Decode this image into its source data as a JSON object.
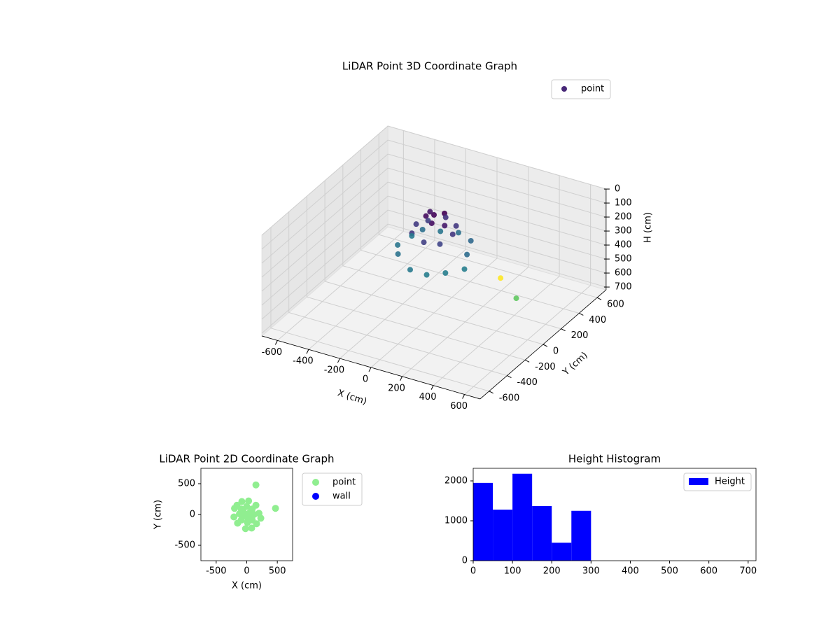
{
  "chart_data": [
    {
      "type": "scatter3d",
      "title": "LiDAR Point 3D Coordinate Graph",
      "xlabel": "X (cm)",
      "ylabel": "Y (cm)",
      "zlabel": "H (cm)",
      "xlim": [
        -700,
        700
      ],
      "ylim": [
        -700,
        700
      ],
      "zlim": [
        720,
        0
      ],
      "xticks": [
        -600,
        -400,
        -200,
        0,
        200,
        400,
        600
      ],
      "yticks": [
        -600,
        -400,
        -200,
        0,
        200,
        400,
        600
      ],
      "zticks": [
        0,
        100,
        200,
        300,
        400,
        500,
        600,
        700
      ],
      "grid": true,
      "legend": "upper right",
      "colormap": [
        "#440154",
        "#482878",
        "#3e4989",
        "#31688e",
        "#26828e",
        "#1f9e89",
        "#35b779",
        "#6ece58",
        "#b5de2b",
        "#fde725"
      ],
      "series": [
        {
          "name": "point",
          "color": "#482878",
          "x": [
            0,
            50,
            -40,
            20,
            -60,
            80,
            120,
            0,
            -120,
            10,
            90,
            -90,
            90,
            -90,
            200,
            -210,
            30,
            -20,
            150,
            -150,
            160,
            -160,
            230,
            -200,
            80,
            -80,
            150,
            470
          ],
          "y": [
            0,
            30,
            -20,
            -60,
            60,
            -20,
            0,
            130,
            10,
            -130,
            90,
            -90,
            -90,
            90,
            20,
            -40,
            220,
            -230,
            150,
            -140,
            -150,
            150,
            -60,
            100,
            -220,
            210,
            480,
            100
          ],
          "z": [
            20,
            10,
            30,
            40,
            50,
            60,
            120,
            110,
            130,
            140,
            120,
            130,
            150,
            140,
            250,
            280,
            260,
            290,
            240,
            270,
            300,
            260,
            300,
            290,
            300,
            280,
            690,
            520
          ]
        }
      ]
    },
    {
      "type": "scatter",
      "title": "LiDAR Point 2D Coordinate Graph",
      "xlabel": "X (cm)",
      "ylabel": "Y (cm)",
      "xlim": [
        -750,
        750
      ],
      "ylim": [
        -750,
        750
      ],
      "xticks": [
        -500,
        0,
        500
      ],
      "yticks": [
        -500,
        0,
        500
      ],
      "legend": "outside right",
      "series": [
        {
          "name": "point",
          "color": "#90ee90",
          "x": [
            0,
            50,
            -40,
            20,
            -60,
            80,
            120,
            0,
            -120,
            10,
            90,
            -90,
            90,
            -90,
            200,
            -210,
            30,
            -20,
            150,
            -150,
            160,
            -160,
            230,
            -200,
            80,
            -80,
            150,
            470
          ],
          "y": [
            0,
            30,
            -20,
            -60,
            60,
            -20,
            0,
            130,
            10,
            -130,
            90,
            -90,
            -90,
            90,
            20,
            -40,
            220,
            -230,
            150,
            -140,
            -150,
            150,
            -60,
            100,
            -220,
            210,
            480,
            100
          ]
        },
        {
          "name": "wall",
          "color": "#0000ff",
          "x": [],
          "y": []
        }
      ]
    },
    {
      "type": "histogram",
      "title": "Height Histogram",
      "bins": [
        0,
        50,
        100,
        150,
        200,
        250,
        300
      ],
      "values": [
        1950,
        1280,
        2180,
        1370,
        450,
        1250
      ],
      "series_name": "Height",
      "color": "#0000ff",
      "xlim": [
        0,
        720
      ],
      "ylim": [
        0,
        2316
      ],
      "xticks": [
        0,
        100,
        200,
        300,
        400,
        500,
        600,
        700
      ],
      "yticks": [
        0,
        1000,
        2000
      ],
      "legend": "upper right"
    }
  ]
}
